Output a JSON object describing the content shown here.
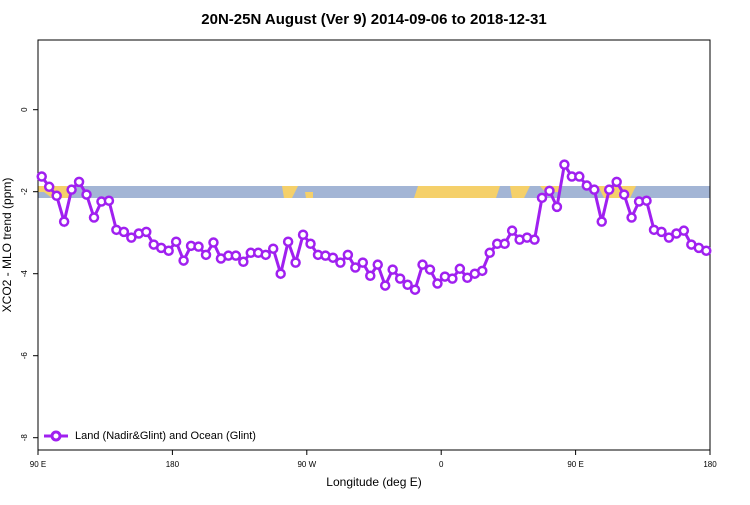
{
  "chart_data": {
    "type": "line",
    "title": "20N-25N August (Ver 9)   2014-09-06 to 2018-12-31",
    "x_label": "Longitude (deg E)",
    "y_label": "XCO2 - MLO trend (ppm)",
    "xlim": [
      90,
      540
    ],
    "ylim": [
      -8.3,
      1.7
    ],
    "xticks": [
      {
        "value": 90,
        "label": "90 E"
      },
      180,
      {
        "value": 270,
        "label": "90 W"
      },
      {
        "value": 360,
        "label": "0"
      },
      {
        "value": 450,
        "label": "90 E"
      },
      {
        "value": 540,
        "label": "180"
      }
    ],
    "yticks": [
      0,
      -2,
      -4,
      -6,
      -8
    ],
    "legend_position": "bottom-left",
    "x": [
      92.5,
      97.5,
      102.5,
      107.5,
      112.5,
      117.5,
      122.5,
      127.5,
      132.5,
      137.5,
      142.5,
      147.5,
      152.5,
      157.5,
      162.5,
      167.5,
      172.5,
      177.5,
      182.5,
      187.5,
      192.5,
      197.5,
      202.5,
      207.5,
      212.5,
      217.5,
      222.5,
      227.5,
      232.5,
      237.5,
      242.5,
      247.5,
      252.5,
      257.5,
      262.5,
      267.5,
      272.5,
      277.5,
      282.5,
      287.5,
      292.5,
      297.5,
      302.5,
      307.5,
      312.5,
      317.5,
      322.5,
      327.5,
      332.5,
      337.5,
      342.5,
      347.5,
      352.5,
      357.5,
      362.5,
      367.5,
      372.5,
      377.5,
      382.5,
      387.5,
      392.5,
      397.5,
      402.5,
      407.5,
      412.5,
      417.5,
      422.5,
      427.5,
      432.5,
      437.5,
      442.5,
      447.5,
      452.5,
      457.5,
      462.5,
      467.5,
      472.5,
      477.5,
      482.5,
      487.5,
      492.5,
      497.5,
      502.5,
      507.5,
      512.5,
      517.5,
      522.5,
      527.5,
      532.5,
      537.5
    ],
    "series": [
      {
        "name": "Land (Nadir&Glint) and Ocean (Glint)",
        "color": "#a020f0",
        "values": [
          -1.63,
          -1.88,
          -2.1,
          -2.73,
          -1.95,
          -1.76,
          -2.07,
          -2.63,
          -2.24,
          -2.22,
          -2.93,
          -2.98,
          -3.12,
          -3.02,
          -2.98,
          -3.29,
          -3.37,
          -3.44,
          -3.22,
          -3.68,
          -3.32,
          -3.34,
          -3.54,
          -3.24,
          -3.63,
          -3.56,
          -3.56,
          -3.71,
          -3.49,
          -3.49,
          -3.54,
          -3.39,
          -4.0,
          -3.22,
          -3.73,
          -3.05,
          -3.27,
          -3.54,
          -3.56,
          -3.61,
          -3.73,
          -3.54,
          -3.85,
          -3.73,
          -4.05,
          -3.78,
          -4.29,
          -3.9,
          -4.12,
          -4.27,
          -4.39,
          -3.78,
          -3.9,
          -4.24,
          -4.07,
          -4.12,
          -3.88,
          -4.1,
          -4.0,
          -3.93,
          -3.49,
          -3.27,
          -3.27,
          -2.95,
          -3.17,
          -3.12,
          -3.17,
          -2.15,
          -1.98,
          -2.37,
          -1.34,
          -1.63,
          -1.63,
          -1.85,
          -1.95,
          -2.73,
          -1.95,
          -1.76,
          -2.07,
          -2.63,
          -2.24,
          -2.22,
          -2.93,
          -2.98,
          -3.12,
          -3.02,
          -2.95,
          -3.29,
          -3.37,
          -3.44
        ]
      }
    ]
  }
}
